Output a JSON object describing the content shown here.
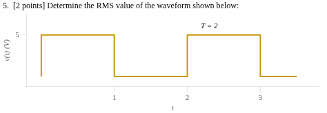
{
  "chart_data": {
    "type": "line",
    "title": "5.  [2 points] Determine the RMS value of the waveform shown below:",
    "x_label": "t",
    "y_label": "v(t) (V)",
    "x": [
      0,
      0,
      1,
      1,
      2,
      2,
      3,
      3,
      3.5
    ],
    "values": [
      0,
      5,
      5,
      0,
      0,
      5,
      5,
      0,
      0
    ],
    "color": "#C8960C",
    "xlim": [
      -0.2,
      3.8
    ],
    "ylim": [
      -1.2,
      7.5
    ],
    "xticks": [
      1,
      2,
      3
    ],
    "yticks": [
      5
    ],
    "grid": false,
    "annotations": [
      {
        "text": "T = 2",
        "x": 2.3,
        "y": 5.6
      }
    ]
  }
}
